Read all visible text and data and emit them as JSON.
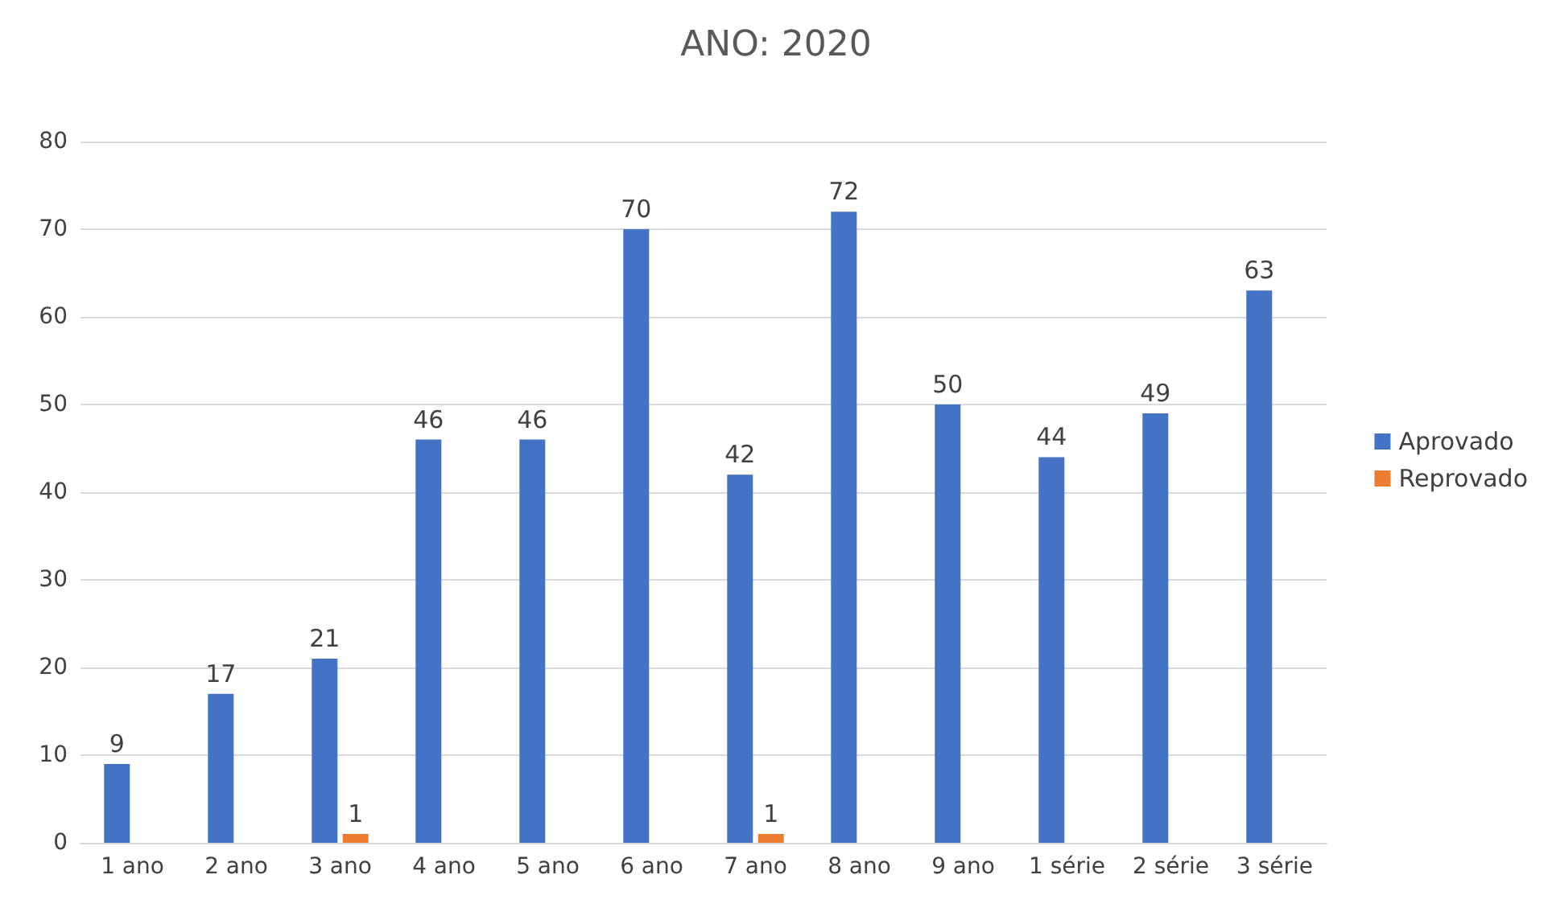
{
  "chart_data": {
    "type": "bar",
    "title": "ANO: 2020",
    "categories": [
      "1 ano",
      "2 ano",
      "3 ano",
      "4 ano",
      "5 ano",
      "6 ano",
      "7 ano",
      "8 ano",
      "9 ano",
      "1 série",
      "2 série",
      "3 série"
    ],
    "series": [
      {
        "name": "Aprovado",
        "color": "#4472c4",
        "values": [
          9,
          17,
          21,
          46,
          46,
          70,
          42,
          72,
          50,
          44,
          49,
          63
        ]
      },
      {
        "name": "Reprovado",
        "color": "#ed7d31",
        "values": [
          null,
          null,
          1,
          null,
          null,
          null,
          1,
          null,
          null,
          null,
          null,
          null
        ]
      }
    ],
    "ylim": [
      0,
      80
    ],
    "yticks": [
      0,
      10,
      20,
      30,
      40,
      50,
      60,
      70,
      80
    ],
    "grid": "y",
    "legend": "right",
    "data_labels": true
  }
}
